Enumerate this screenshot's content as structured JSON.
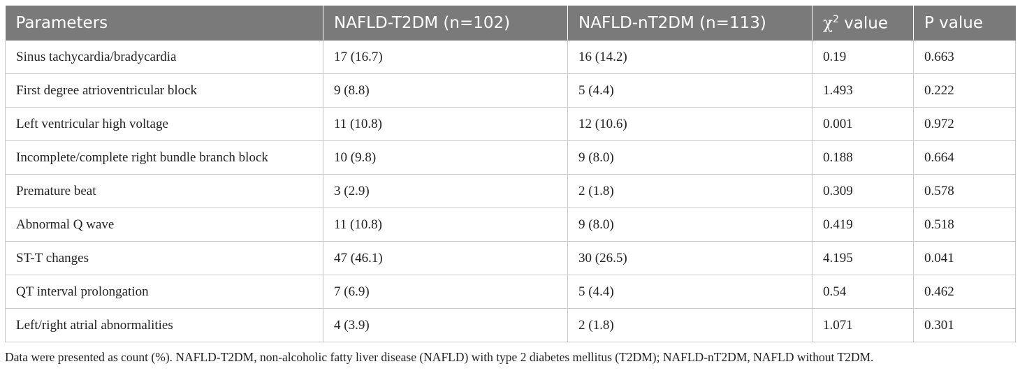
{
  "table": {
    "headers": {
      "parameters": "Parameters",
      "group1": "NAFLD-T2DM (n=102)",
      "group2": "NAFLD-nT2DM (n=113)",
      "chi_symbol": "χ",
      "chi_exp": "2",
      "chi_rest": " value",
      "p_value": "P value"
    },
    "rows": [
      {
        "parameter": "Sinus tachycardia/bradycardia",
        "t2dm": "17 (16.7)",
        "nt2dm": "16 (14.2)",
        "chi2": "0.19",
        "p": "0.663"
      },
      {
        "parameter": "First degree atrioventricular block",
        "t2dm": "9 (8.8)",
        "nt2dm": "5 (4.4)",
        "chi2": "1.493",
        "p": "0.222"
      },
      {
        "parameter": "Left ventricular high voltage",
        "t2dm": "11 (10.8)",
        "nt2dm": "12 (10.6)",
        "chi2": "0.001",
        "p": "0.972"
      },
      {
        "parameter": "Incomplete/complete right bundle branch block",
        "t2dm": "10 (9.8)",
        "nt2dm": "9 (8.0)",
        "chi2": "0.188",
        "p": "0.664"
      },
      {
        "parameter": "Premature beat",
        "t2dm": "3 (2.9)",
        "nt2dm": "2 (1.8)",
        "chi2": "0.309",
        "p": "0.578"
      },
      {
        "parameter": "Abnormal Q wave",
        "t2dm": "11 (10.8)",
        "nt2dm": "9 (8.0)",
        "chi2": "0.419",
        "p": "0.518"
      },
      {
        "parameter": "ST-T changes",
        "t2dm": "47 (46.1)",
        "nt2dm": "30 (26.5)",
        "chi2": "4.195",
        "p": "0.041"
      },
      {
        "parameter": "QT interval prolongation",
        "t2dm": "7 (6.9)",
        "nt2dm": "5 (4.4)",
        "chi2": "0.54",
        "p": "0.462"
      },
      {
        "parameter": "Left/right atrial abnormalities",
        "t2dm": "4 (3.9)",
        "nt2dm": "2 (1.8)",
        "chi2": "1.071",
        "p": "0.301"
      }
    ],
    "footnote": "Data were presented as count (%). NAFLD-T2DM, non-alcoholic fatty liver disease (NAFLD) with type 2 diabetes mellitus (T2DM); NAFLD-nT2DM, NAFLD without T2DM."
  }
}
